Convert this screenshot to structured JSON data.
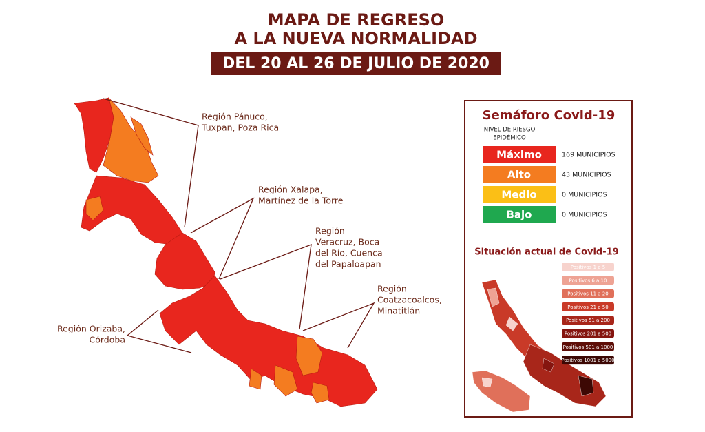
{
  "header": {
    "title_lines": [
      "MAPA DE REGRESO",
      "A LA NUEVA NORMALIDAD"
    ],
    "date": "DEL 20 AL 26 DE JULIO DE 2020"
  },
  "regions": [
    {
      "label_lines": [
        "Región Pánuco,",
        "Tuxpan, Poza Rica"
      ]
    },
    {
      "label_lines": [
        "Región Xalapa,",
        "Martínez de la Torre"
      ]
    },
    {
      "label_lines": [
        "Región",
        "Veracruz, Boca",
        "del Río, Cuenca",
        "del Papaloapan"
      ]
    },
    {
      "label_lines": [
        "Región",
        "Coatzacoalcos,",
        "Minatitlán"
      ]
    },
    {
      "label_lines": [
        "Región Orizaba,",
        "Córdoba"
      ]
    }
  ],
  "semaforo": {
    "title": "Semáforo Covid-19",
    "subtitle_lines": [
      "NIVEL DE RIESGO",
      "EPIDÉMICO"
    ],
    "levels": [
      {
        "name": "Máximo",
        "color": "#e8261e",
        "count": "169 MUNICIPIOS"
      },
      {
        "name": "Alto",
        "color": "#f47c20",
        "count": "43 MUNICIPIOS"
      },
      {
        "name": "Medio",
        "color": "#fbbf16",
        "count": "0 MUNICIPIOS"
      },
      {
        "name": "Bajo",
        "color": "#1fa84f",
        "count": "0 MUNICIPIOS"
      }
    ]
  },
  "situacion": {
    "title": "Situación actual de Covid-19",
    "legend": [
      {
        "label": "Positivos 1 a 5",
        "color": "#f7d3cd"
      },
      {
        "label": "Positivos 6 a 10",
        "color": "#eea394"
      },
      {
        "label": "Positivos 11 a 20",
        "color": "#e0705a"
      },
      {
        "label": "Positivos 21 a 50",
        "color": "#c93a28"
      },
      {
        "label": "Positivos 51 a 200",
        "color": "#a8261a"
      },
      {
        "label": "Positivos 201 a 500",
        "color": "#85150f"
      },
      {
        "label": "Positivos 501 a 1000",
        "color": "#5e0e08"
      },
      {
        "label": "Positivos 1001 a 5000",
        "color": "#3d0804"
      }
    ]
  }
}
